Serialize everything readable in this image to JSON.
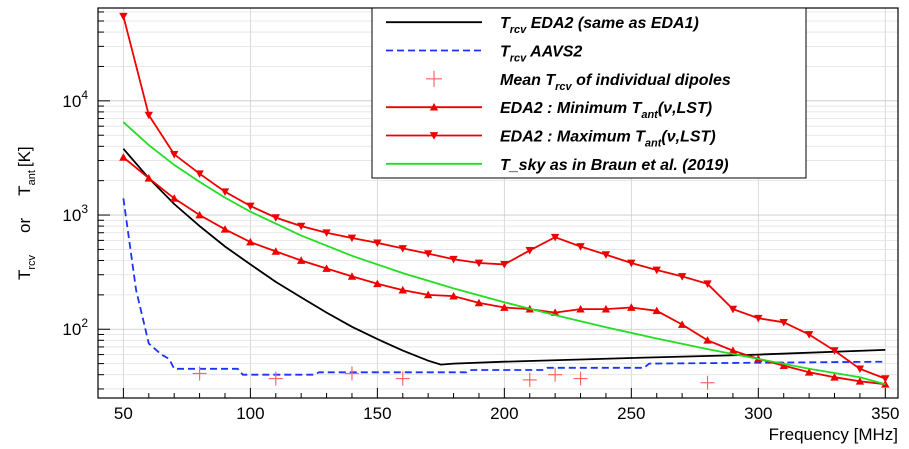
{
  "chart_data": {
    "type": "line",
    "title": "",
    "xlabel": "Frequency [MHz]",
    "ylabel": {
      "part1": "T",
      "part1_sub": "rcv",
      "or": "or",
      "part2": "T",
      "part2_sub": "ant",
      "unit": "[K]"
    },
    "xlim": [
      40,
      355
    ],
    "ylim": [
      25,
      65000
    ],
    "y_scale": "log",
    "grid": true,
    "legend_position": "top-right",
    "x_ticks": [
      50,
      100,
      150,
      200,
      250,
      300,
      350
    ],
    "y_ticks": [
      {
        "value": 100,
        "base": "10",
        "exp": "2"
      },
      {
        "value": 1000,
        "base": "10",
        "exp": "3"
      },
      {
        "value": 10000,
        "base": "10",
        "exp": "4"
      }
    ],
    "series": [
      {
        "id": "eda2",
        "legend": {
          "pre": "T",
          "sub": "rcv",
          "post": " EDA2 (same as EDA1)"
        },
        "color": "#000000",
        "style": "solid",
        "x": [
          50,
          60,
          70,
          80,
          90,
          100,
          110,
          120,
          130,
          140,
          150,
          160,
          170,
          175,
          180,
          200,
          250,
          300,
          350
        ],
        "y": [
          3800,
          2100,
          1250,
          800,
          530,
          370,
          260,
          190,
          140,
          105,
          82,
          65,
          53,
          49,
          50,
          52,
          56,
          60,
          66
        ]
      },
      {
        "id": "aavs2",
        "legend": {
          "pre": "T",
          "sub": "rcv",
          "post": " AAVS2"
        },
        "color": "#1a33ff",
        "style": "dashed",
        "x": [
          50,
          55,
          60,
          65,
          68,
          70,
          95,
          97,
          125,
          127,
          185,
          187,
          215,
          217,
          255,
          257,
          350
        ],
        "y": [
          1400,
          220,
          75,
          60,
          55,
          45,
          45,
          40,
          40,
          42,
          42,
          44,
          44,
          46,
          46,
          50,
          52
        ]
      },
      {
        "id": "dipoles",
        "legend": {
          "pre": "Mean T",
          "sub": "rcv",
          "post": " of individual dipoles"
        },
        "color": "#ff6666",
        "style": "markers",
        "x": [
          80,
          110,
          140,
          160,
          210,
          220,
          230,
          280
        ],
        "y": [
          41,
          37,
          41,
          37,
          36,
          40,
          37,
          34
        ]
      },
      {
        "id": "tmin",
        "legend": {
          "pre": "EDA2 : Minimum T",
          "sub": "ant",
          "post": "(ν,LST)"
        },
        "color": "#ee0000",
        "style": "line-triangle-up",
        "x": [
          50,
          60,
          70,
          80,
          90,
          100,
          110,
          120,
          130,
          140,
          150,
          160,
          170,
          180,
          190,
          200,
          210,
          220,
          230,
          240,
          250,
          260,
          270,
          280,
          290,
          300,
          310,
          320,
          330,
          340,
          350
        ],
        "y": [
          3200,
          2100,
          1400,
          1000,
          750,
          580,
          480,
          400,
          340,
          290,
          250,
          220,
          200,
          195,
          170,
          155,
          150,
          140,
          150,
          150,
          155,
          145,
          110,
          80,
          65,
          55,
          48,
          42,
          38,
          35,
          33
        ]
      },
      {
        "id": "tmax",
        "legend": {
          "pre": "EDA2 : Maximum T",
          "sub": "ant",
          "post": "(ν,LST)"
        },
        "color": "#ee0000",
        "style": "line-triangle-down",
        "x": [
          50,
          60,
          70,
          80,
          90,
          100,
          110,
          120,
          130,
          140,
          150,
          160,
          170,
          180,
          190,
          200,
          210,
          220,
          230,
          240,
          250,
          260,
          270,
          280,
          290,
          300,
          310,
          320,
          330,
          340,
          350
        ],
        "y": [
          55000,
          7500,
          3400,
          2300,
          1600,
          1200,
          950,
          800,
          700,
          630,
          570,
          510,
          460,
          410,
          380,
          370,
          490,
          640,
          530,
          450,
          380,
          330,
          290,
          250,
          150,
          125,
          115,
          90,
          65,
          45,
          37
        ]
      },
      {
        "id": "tsky",
        "legend": {
          "pre": "T_sky as in Braun et al. (2019)",
          "sub": "",
          "post": ""
        },
        "color": "#22dd22",
        "style": "solid",
        "x": [
          50,
          60,
          70,
          80,
          90,
          100,
          120,
          140,
          160,
          180,
          200,
          220,
          240,
          260,
          280,
          300,
          320,
          340,
          350
        ],
        "y": [
          6500,
          4100,
          2750,
          1950,
          1420,
          1070,
          660,
          440,
          310,
          228,
          172,
          133,
          104,
          83,
          67,
          55,
          45,
          38,
          33
        ]
      }
    ]
  }
}
